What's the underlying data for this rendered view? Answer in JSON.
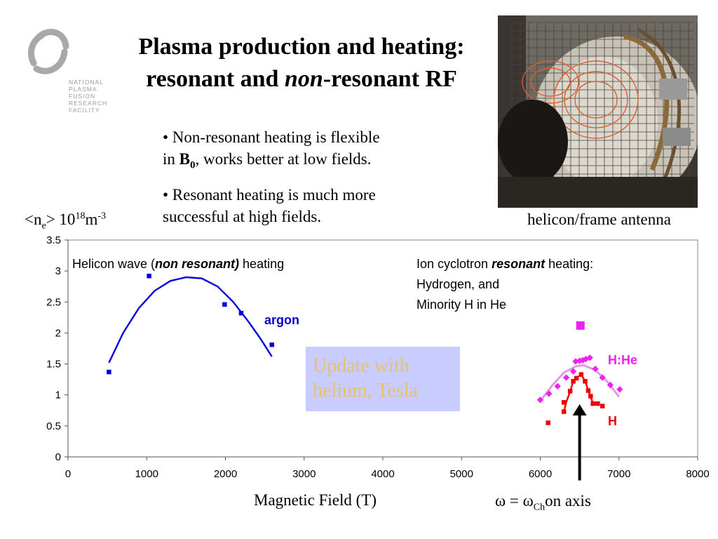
{
  "logo": {
    "icon": "npf-logo-icon",
    "lines": [
      "NATIONAL",
      "PLASMA",
      "FUSION",
      "RESEARCH",
      "FACILITY"
    ],
    "color": "#9a9a9a"
  },
  "title": {
    "line1": "Plasma production and heating:",
    "line2_a": "resonant and ",
    "line2_b": "non",
    "line2_c": "-resonant RF"
  },
  "bullets": {
    "b1_a": "• Non-resonant heating is flexible",
    "b1_b": "in ",
    "b1_bold": "B",
    "b1_sub": "0",
    "b1_c": ", works better at low fields.",
    "b2_a": "• Resonant heating is much more",
    "b2_b": "successful at high fields."
  },
  "photo": {
    "caption": "helicon/frame antenna"
  },
  "y_unit": {
    "a": "<n",
    "sub": "e",
    "b": "> 10",
    "sup1": "18",
    "c": "m",
    "sup2": "-3"
  },
  "chart_data": {
    "type": "scatter",
    "xlabel": "Magnetic Field (T)",
    "xlim": [
      0,
      8000
    ],
    "ylim": [
      0,
      3.5
    ],
    "xticks": [
      "0",
      "1000",
      "2000",
      "3000",
      "4000",
      "5000",
      "6000",
      "7000",
      "8000"
    ],
    "yticks": [
      "0",
      "0.5",
      "1",
      "1.5",
      "2",
      "2.5",
      "3",
      "3.5"
    ],
    "grid": false,
    "series": [
      {
        "name": "argon",
        "color": "#0000dd",
        "marker": "square",
        "points": [
          [
            520,
            1.37
          ],
          [
            1030,
            2.92
          ],
          [
            1990,
            2.46
          ],
          [
            2200,
            2.32
          ],
          [
            2590,
            1.81
          ]
        ],
        "fit": [
          [
            520,
            1.52
          ],
          [
            700,
            2.0
          ],
          [
            900,
            2.4
          ],
          [
            1100,
            2.68
          ],
          [
            1300,
            2.84
          ],
          [
            1500,
            2.9
          ],
          [
            1700,
            2.88
          ],
          [
            1900,
            2.75
          ],
          [
            2100,
            2.5
          ],
          [
            2300,
            2.17
          ],
          [
            2450,
            1.9
          ],
          [
            2590,
            1.62
          ]
        ]
      },
      {
        "name": "H:He",
        "color": "#ee22ee",
        "marker": "diamond",
        "points": [
          [
            6000,
            0.92
          ],
          [
            6110,
            1.02
          ],
          [
            6220,
            1.14
          ],
          [
            6330,
            1.28
          ],
          [
            6420,
            1.38
          ],
          [
            6450,
            1.54
          ],
          [
            6500,
            1.55
          ],
          [
            6540,
            1.56
          ],
          [
            6580,
            1.58
          ],
          [
            6630,
            1.6
          ],
          [
            6700,
            1.42
          ],
          [
            6790,
            1.28
          ],
          [
            6890,
            1.16
          ],
          [
            7010,
            1.09
          ],
          [
            6510,
            2.12
          ]
        ],
        "fit": [
          [
            6000,
            0.9
          ],
          [
            6150,
            1.15
          ],
          [
            6300,
            1.36
          ],
          [
            6450,
            1.46
          ],
          [
            6550,
            1.48
          ],
          [
            6700,
            1.4
          ],
          [
            6850,
            1.22
          ],
          [
            7000,
            0.97
          ]
        ]
      },
      {
        "name": "H",
        "color": "#ee0000",
        "marker": "square",
        "points": [
          [
            6100,
            0.55
          ],
          [
            6300,
            0.73
          ],
          [
            6300,
            0.88
          ],
          [
            6380,
            1.06
          ],
          [
            6420,
            1.22
          ],
          [
            6460,
            1.27
          ],
          [
            6520,
            1.33
          ],
          [
            6570,
            1.22
          ],
          [
            6610,
            1.07
          ],
          [
            6640,
            0.98
          ],
          [
            6670,
            0.86
          ],
          [
            6730,
            0.86
          ],
          [
            6790,
            0.82
          ]
        ],
        "fit": [
          [
            6300,
            0.73
          ],
          [
            6330,
            0.88
          ],
          [
            6380,
            1.06
          ],
          [
            6420,
            1.22
          ],
          [
            6460,
            1.27
          ],
          [
            6520,
            1.33
          ],
          [
            6570,
            1.22
          ],
          [
            6610,
            1.07
          ],
          [
            6640,
            0.98
          ],
          [
            6670,
            0.86
          ],
          [
            6730,
            0.86
          ]
        ]
      }
    ],
    "annotations": {
      "helicon_a": "Helicon wave (",
      "helicon_b": "non resonant)",
      "helicon_c": " heating",
      "ion_a": "Ion cyclotron ",
      "ion_b": "resonant",
      "ion_c": " heating:",
      "ion_line2": "Hydrogen, and",
      "ion_line3": "Minority H in He",
      "argon_label": "argon",
      "hhe_label": "H:He",
      "h_label": "H"
    },
    "arrow": {
      "x": 6500,
      "y_from": -0.38,
      "y_to": 0.85
    }
  },
  "omega_label": {
    "a": "ω = ω",
    "sub": "Ch",
    "b": "on axis"
  },
  "update_box": {
    "line1": "Update with",
    "line2": "helium, Tesla",
    "bg": "#c8ccff",
    "fg": "#e8c26a"
  }
}
